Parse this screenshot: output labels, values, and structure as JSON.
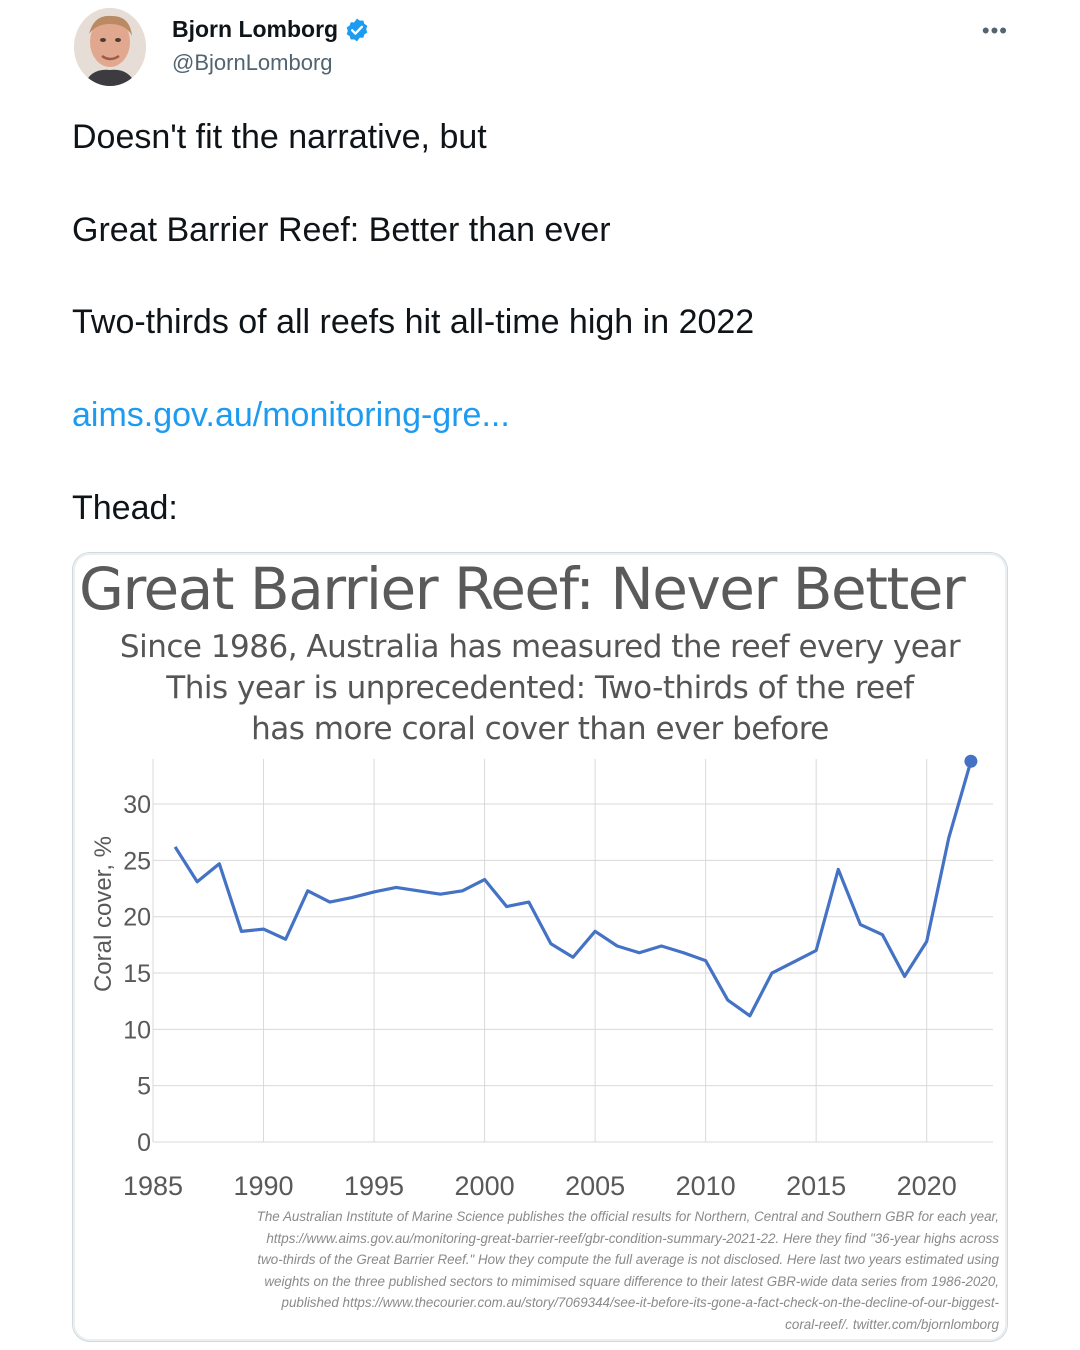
{
  "author": {
    "name": "Bjorn Lomborg",
    "handle": "@BjornLomborg",
    "more_icon": "ellipsis-icon"
  },
  "tweet": {
    "line1": "Doesn't fit the narrative, but",
    "line2": "Great Barrier Reef: Better than ever",
    "line3": "Two-thirds of all reefs hit all-time high in 2022",
    "link_text": "aims.gov.au/monitoring-gre...",
    "line4": "Thead:"
  },
  "card": {
    "title": "Great Barrier Reef: Never Better",
    "subtitle_lines": [
      "Since 1986, Australia has measured the reef every year",
      "This year is unprecedented: Two-thirds of the reef",
      "has more coral cover than ever before"
    ],
    "footnote_lines": [
      "The Australian Institute of Marine Science publishes the official results for Northern, Central and Southern GBR for each year,",
      "https://www.aims.gov.au/monitoring-great-barrier-reef/gbr-condition-summary-2021-22. Here they find \"36-year highs across",
      "two-thirds of the Great Barrier Reef.\" How they compute the full average is not disclosed. Here last two years estimated using",
      "weights on the three published sectors to mimimised square difference to their latest GBR-wide data series from 1986-2020,",
      "published https://www.thecourier.com.au/story/7069344/see-it-before-its-gone-a-fact-check-on-the-decline-of-our-biggest-",
      "coral-reef/. twitter.com/bjornlomborg"
    ]
  },
  "colors": {
    "link": "#1d9bf0",
    "line": "#4472c4",
    "verified": "#1d9bf0"
  },
  "chart_data": {
    "type": "line",
    "title": "Great Barrier Reef: Never Better",
    "xlabel": "",
    "ylabel": "Coral cover, %",
    "xlim": [
      1985,
      2023
    ],
    "ylim": [
      0,
      34
    ],
    "x_ticks": [
      1985,
      1990,
      1995,
      2000,
      2005,
      2010,
      2015,
      2020
    ],
    "y_ticks": [
      0,
      5,
      10,
      15,
      20,
      25,
      30
    ],
    "grid": true,
    "x": [
      1986,
      1987,
      1988,
      1989,
      1990,
      1991,
      1992,
      1993,
      1994,
      1995,
      1996,
      1997,
      1998,
      1999,
      2000,
      2001,
      2002,
      2003,
      2004,
      2005,
      2006,
      2007,
      2008,
      2009,
      2010,
      2011,
      2012,
      2013,
      2014,
      2015,
      2016,
      2017,
      2018,
      2019,
      2020,
      2021,
      2022
    ],
    "series": [
      {
        "values": [
          26.2,
          23.1,
          24.7,
          18.7,
          18.9,
          18.0,
          22.3,
          21.3,
          21.7,
          22.2,
          22.6,
          22.3,
          22.0,
          22.3,
          23.3,
          20.9,
          21.3,
          17.6,
          16.4,
          18.7,
          17.4,
          16.8,
          17.4,
          16.8,
          16.1,
          12.6,
          11.2,
          15.0,
          16.0,
          17.0,
          24.2,
          19.3,
          18.4,
          14.7,
          17.8,
          27.0,
          33.8
        ]
      }
    ],
    "highlight_last_point": true
  }
}
